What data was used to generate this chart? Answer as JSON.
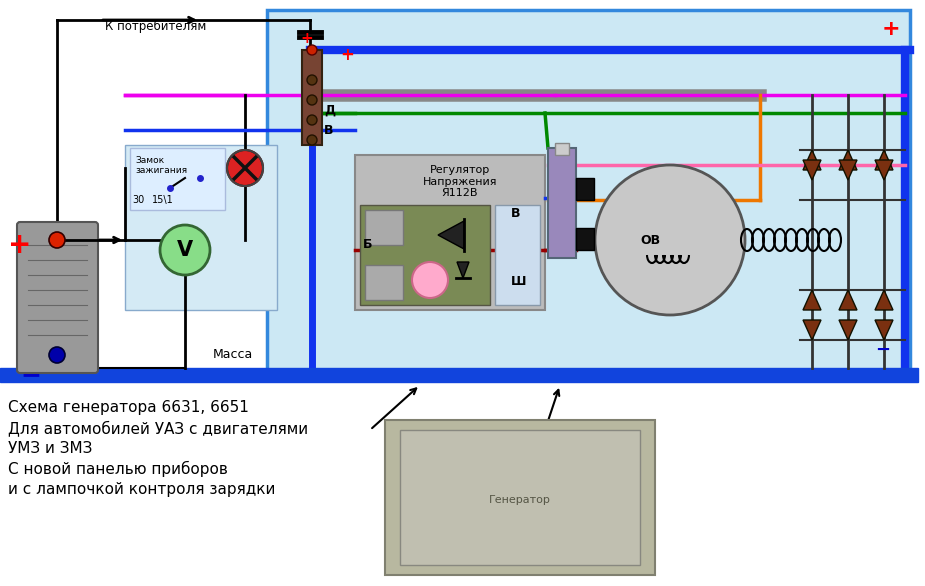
{
  "bg_color": "#ffffff",
  "circuit_bg": "#cce8f4",
  "left_panel_bg": "#d4eaf5",
  "title_text": "Схема генератора 6631, 6651\nДля автомобилей УАЗ с двигателями\nУМЗ и ЗМЗ\nС новой панелью приборов\nи с лампочкой контроля зарядки",
  "label_k_potrebitelyam": "К потребителям",
  "label_zamok": "Замок\nзажигания",
  "label_30": "30",
  "label_15_1": "15\\1",
  "label_massa": "Масса",
  "label_D": "Д",
  "label_B_terminal": "В",
  "label_B_reg": "В",
  "label_B_lower": "Б",
  "label_Sh": "Ш",
  "label_regulator": "Регулятор\nНапряжения\nЯ112В",
  "label_OV": "ОВ",
  "plus_color": "#ff0000",
  "minus_color": "#0000cc",
  "blue_wire": "#1133ee",
  "green_wire": "#008800",
  "magenta_wire": "#ee00ee",
  "orange_wire": "#ee7700",
  "dark_red_wire": "#990000",
  "gray_color": "#aaaaaa",
  "brown_color": "#6b3a2a",
  "black_color": "#000000",
  "diode_color": "#7a3010"
}
